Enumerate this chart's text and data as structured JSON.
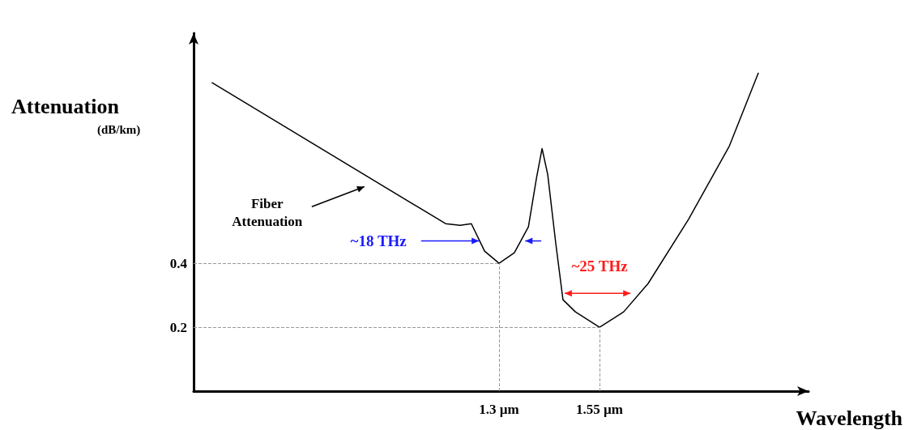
{
  "chart_data": {
    "type": "line",
    "xlabel": "Wavelength",
    "ylabel": "Attenuation (dB/km)",
    "x": [
      0.586,
      1.167,
      1.203,
      1.231,
      1.264,
      1.3,
      1.338,
      1.373,
      1.393,
      1.407,
      1.421,
      1.441,
      1.459,
      1.49,
      1.55,
      1.61,
      1.671,
      1.772,
      1.873,
      1.945
    ],
    "series": [
      {
        "color": "#000000",
        "values": [
          0.965,
          0.524,
          0.519,
          0.524,
          0.438,
          0.4,
          0.433,
          0.514,
          0.666,
          0.759,
          0.678,
          0.463,
          0.286,
          0.248,
          0.2,
          0.248,
          0.337,
          0.539,
          0.767,
          0.995
        ]
      }
    ],
    "xlim": [
      0.54,
      2.07
    ],
    "ylim": [
      0,
      1.12
    ],
    "xticks": [
      {
        "value": 1.3,
        "label": "1.3 µm"
      },
      {
        "value": 1.55,
        "label": "1.55 µm"
      }
    ],
    "yticks": [
      0.2,
      0.4
    ],
    "ref_lines": [
      {
        "axis": "y",
        "value": 0.4,
        "color": "#999999",
        "line_style": "dashed"
      },
      {
        "axis": "y",
        "value": 0.2,
        "color": "#999999",
        "line_style": "dashed"
      },
      {
        "axis": "x",
        "value": 1.3,
        "color": "#999999",
        "line_style": "dashed"
      },
      {
        "axis": "x",
        "value": 1.55,
        "color": "#999999",
        "line_style": "dashed"
      }
    ],
    "annotations": [
      "Fiber Attenuation",
      {
        "text": "~18 THz",
        "x": 1.25,
        "y": 0.47
      },
      "~25 THz"
    ],
    "grid": false,
    "marker": "none",
    "line_style": "solid"
  }
}
